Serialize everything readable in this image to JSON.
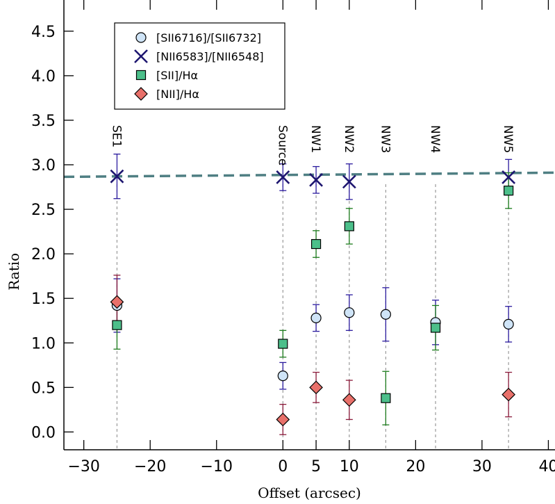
{
  "chart_data": {
    "type": "scatter",
    "xlabel": "Offset (arcsec)",
    "ylabel": "Ratio",
    "xlim": [
      -33,
      41
    ],
    "ylim": [
      -0.2,
      4.85
    ],
    "x_ticks": [
      -30,
      -20,
      -10,
      0,
      5,
      10,
      20,
      30,
      40
    ],
    "x_tick_labels": [
      "−30",
      "−20",
      "−10",
      "0",
      "5",
      "10",
      "20",
      "30",
      "40"
    ],
    "y_ticks": [
      0.0,
      0.5,
      1.0,
      1.5,
      2.0,
      2.5,
      3.0,
      3.5,
      4.0,
      4.5
    ],
    "y_tick_labels": [
      "0.0",
      "0.5",
      "1.0",
      "1.5",
      "2.0",
      "2.5",
      "3.0",
      "3.5",
      "4.0",
      "4.5"
    ],
    "reference_line": {
      "y": 2.88,
      "style": "dashed",
      "color": "#4f7f83"
    },
    "regions": [
      {
        "label": "SE1",
        "x": -25
      },
      {
        "label": "Source",
        "x": 0
      },
      {
        "label": "NW1",
        "x": 5
      },
      {
        "label": "NW2",
        "x": 10
      },
      {
        "label": "NW3",
        "x": 15.5
      },
      {
        "label": "NW4",
        "x": 23
      },
      {
        "label": "NW5",
        "x": 34
      }
    ],
    "legend": {
      "position": "top-left",
      "entries": [
        "[SII6716]/[SII6732]",
        "[NII6583]/[NII6548]",
        "[SII]/Hα",
        "[NII]/Hα"
      ]
    },
    "series": [
      {
        "name": "[SII6716]/[SII6732]",
        "marker": "circle",
        "fill": "#cfe4f7",
        "error_color": "#2a1a9e",
        "points": [
          {
            "x": -25,
            "y": 1.42,
            "err": 0.3
          },
          {
            "x": 0,
            "y": 0.63,
            "err": 0.15
          },
          {
            "x": 5,
            "y": 1.28,
            "err": 0.15
          },
          {
            "x": 10,
            "y": 1.34,
            "err": 0.2
          },
          {
            "x": 15.5,
            "y": 1.32,
            "err": 0.3
          },
          {
            "x": 23,
            "y": 1.23,
            "err": 0.25
          },
          {
            "x": 34,
            "y": 1.21,
            "err": 0.2
          }
        ]
      },
      {
        "name": "[NII6583]/[NII6548]",
        "marker": "x",
        "fill": "#1e1670",
        "error_color": "#2a1a9e",
        "points": [
          {
            "x": -25,
            "y": 2.87,
            "err": 0.25
          },
          {
            "x": 0,
            "y": 2.86,
            "err": 0.15
          },
          {
            "x": 5,
            "y": 2.83,
            "err": 0.15
          },
          {
            "x": 10,
            "y": 2.81,
            "err": 0.2
          },
          {
            "x": 34,
            "y": 2.86,
            "err": 0.2
          }
        ]
      },
      {
        "name": "[SII]/Hα",
        "marker": "square",
        "fill": "#4cbf8a",
        "error_color": "#1a7a1a",
        "points": [
          {
            "x": -25,
            "y": 1.2,
            "err": 0.27
          },
          {
            "x": 0,
            "y": 0.99,
            "err": 0.15
          },
          {
            "x": 5,
            "y": 2.11,
            "err": 0.15
          },
          {
            "x": 10,
            "y": 2.31,
            "err": 0.2
          },
          {
            "x": 15.5,
            "y": 0.38,
            "err": 0.3
          },
          {
            "x": 23,
            "y": 1.17,
            "err": 0.25
          },
          {
            "x": 34,
            "y": 2.71,
            "err": 0.2
          }
        ]
      },
      {
        "name": "[NII]/Hα",
        "marker": "diamond",
        "fill": "#e8706a",
        "error_color": "#8a1a3a",
        "points": [
          {
            "x": -25,
            "y": 1.46,
            "err": 0.3
          },
          {
            "x": 0,
            "y": 0.14,
            "err": 0.17
          },
          {
            "x": 5,
            "y": 0.5,
            "err": 0.17
          },
          {
            "x": 10,
            "y": 0.36,
            "err": 0.22
          },
          {
            "x": 34,
            "y": 0.42,
            "err": 0.25
          }
        ]
      }
    ]
  }
}
